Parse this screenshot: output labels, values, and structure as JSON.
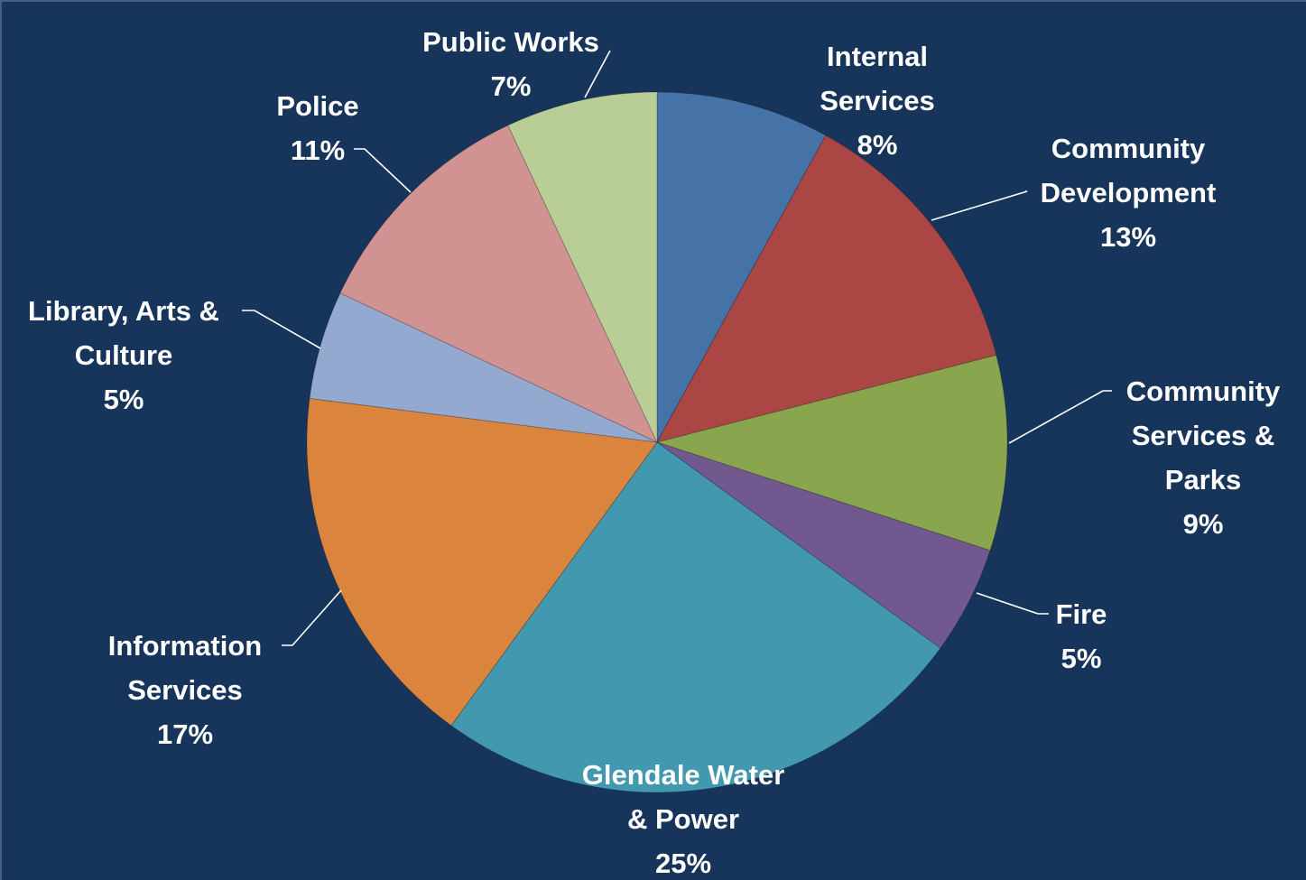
{
  "chart_data": {
    "type": "pie",
    "start_angle_deg": 0,
    "direction": "clockwise",
    "slices": [
      {
        "key": "internal",
        "lines": [
          "Internal",
          "Services"
        ],
        "pct_label": "8%",
        "value": 8,
        "color": "#4572a7"
      },
      {
        "key": "community",
        "lines": [
          "Community",
          "Development"
        ],
        "pct_label": "13%",
        "value": 13,
        "color": "#aa4643"
      },
      {
        "key": "parks",
        "lines": [
          "Community",
          "Services &",
          "Parks"
        ],
        "pct_label": "9%",
        "value": 9,
        "color": "#89a54e"
      },
      {
        "key": "fire",
        "lines": [
          "Fire"
        ],
        "pct_label": "5%",
        "value": 5,
        "color": "#71588f"
      },
      {
        "key": "gwp",
        "lines": [
          "Glendale Water",
          "& Power"
        ],
        "pct_label": "25%",
        "value": 25,
        "color": "#4198af"
      },
      {
        "key": "infoserv",
        "lines": [
          "Information",
          "Services"
        ],
        "pct_label": "17%",
        "value": 17,
        "color": "#db843d"
      },
      {
        "key": "library",
        "lines": [
          "Library, Arts &",
          "Culture"
        ],
        "pct_label": "5%",
        "value": 5,
        "color": "#93a9cf"
      },
      {
        "key": "police",
        "lines": [
          "Police"
        ],
        "pct_label": "11%",
        "value": 11,
        "color": "#d19392"
      },
      {
        "key": "publicworks",
        "lines": [
          "Public Works"
        ],
        "pct_label": "7%",
        "value": 7,
        "color": "#b9cd96"
      }
    ]
  }
}
